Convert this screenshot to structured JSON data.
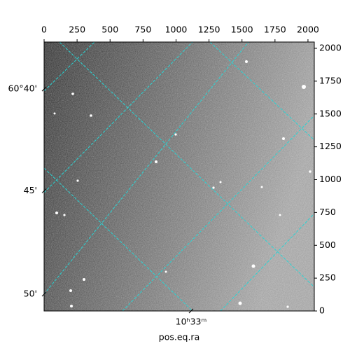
{
  "chart_data": {
    "type": "image",
    "xlabel": "pos.eq.ra",
    "xlim": [
      0,
      2048
    ],
    "ylim": [
      0,
      2048
    ],
    "xticks": [
      0,
      250,
      500,
      750,
      1000,
      1250,
      1500,
      1750,
      2000
    ],
    "yticks": [
      0,
      250,
      500,
      750,
      1000,
      1250,
      1500,
      1750,
      2000
    ],
    "wcs_yticks": [
      {
        "value": 1690,
        "label": "60°40'"
      },
      {
        "value": 915,
        "label": "45'"
      },
      {
        "value": 128,
        "label": "50'"
      }
    ],
    "wcs_xticks": [
      {
        "value": 1114,
        "label": "10ʰ33ᵐ"
      }
    ],
    "grid_color": "#2ad4d4"
  }
}
